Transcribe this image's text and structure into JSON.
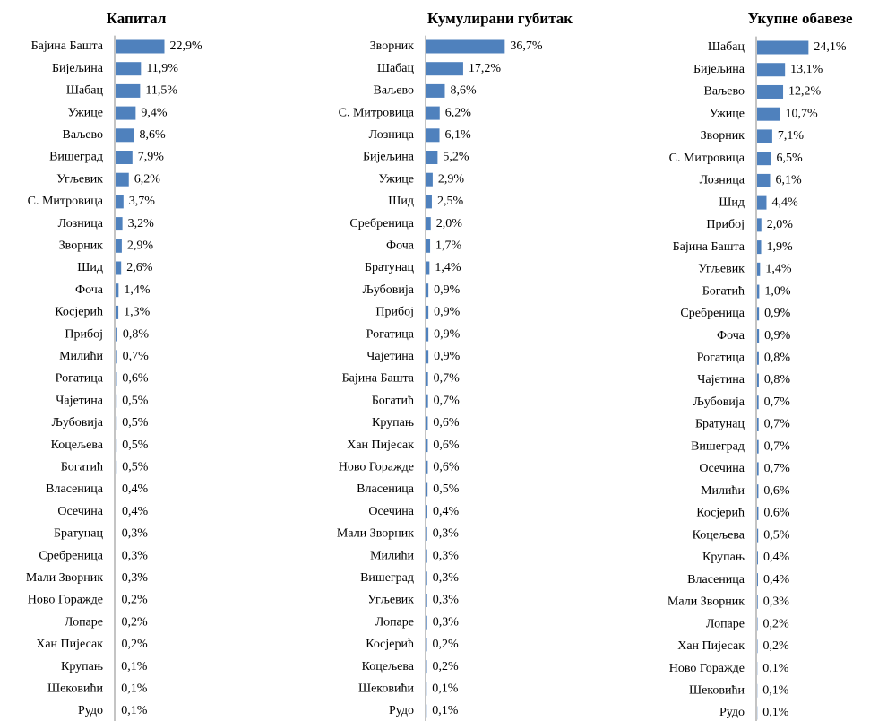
{
  "chart_data": [
    {
      "type": "bar",
      "orientation": "horizontal",
      "title": "Капитал",
      "color": "#4f81bd",
      "categories": [
        "Бајина Башта",
        "Бијељина",
        "Шабац",
        "Ужице",
        "Ваљево",
        "Вишеград",
        "Угљевик",
        "С. Митровица",
        "Лозница",
        "Зворник",
        "Шид",
        "Фоча",
        "Косјерић",
        "Прибој",
        "Милићи",
        "Рогатица",
        "Чајетина",
        "Љубовија",
        "Коцељева",
        "Богатић",
        "Власеница",
        "Осечина",
        "Братунац",
        "Сребреница",
        "Мали Зворник",
        "Ново Горажде",
        "Лопаре",
        "Хан Пијесак",
        "Крупањ",
        "Шековићи",
        "Рудо"
      ],
      "values": [
        22.9,
        11.9,
        11.5,
        9.4,
        8.6,
        7.9,
        6.2,
        3.7,
        3.2,
        2.9,
        2.6,
        1.4,
        1.3,
        0.8,
        0.7,
        0.6,
        0.5,
        0.5,
        0.5,
        0.5,
        0.4,
        0.4,
        0.3,
        0.3,
        0.3,
        0.2,
        0.2,
        0.2,
        0.1,
        0.1,
        0.1
      ],
      "value_labels": [
        "22,9%",
        "11,9%",
        "11,5%",
        "9,4%",
        "8,6%",
        "7,9%",
        "6,2%",
        "3,7%",
        "3,2%",
        "2,9%",
        "2,6%",
        "1,4%",
        "1,3%",
        "0,8%",
        "0,7%",
        "0,6%",
        "0,5%",
        "0,5%",
        "0,5%",
        "0,5%",
        "0,4%",
        "0,4%",
        "0,3%",
        "0,3%",
        "0,3%",
        "0,2%",
        "0,2%",
        "0,2%",
        "0,1%",
        "0,1%",
        "0,1%"
      ]
    },
    {
      "type": "bar",
      "orientation": "horizontal",
      "title": "Кумулирани губитак",
      "color": "#4f81bd",
      "categories": [
        "Зворник",
        "Шабац",
        "Ваљево",
        "С. Митровица",
        "Лозница",
        "Бијељина",
        "Ужице",
        "Шид",
        "Сребреница",
        "Фоча",
        "Братунац",
        "Љубовија",
        "Прибој",
        "Рогатица",
        "Чајетина",
        "Бајина Башта",
        "Богатић",
        "Крупањ",
        "Хан Пијесак",
        "Ново Горажде",
        "Власеница",
        "Осечина",
        "Мали Зворник",
        "Милићи",
        "Вишеград",
        "Угљевик",
        "Лопаре",
        "Косјерић",
        "Коцељева",
        "Шековићи",
        "Рудо"
      ],
      "values": [
        36.7,
        17.2,
        8.6,
        6.2,
        6.1,
        5.2,
        2.9,
        2.5,
        2.0,
        1.7,
        1.4,
        0.9,
        0.9,
        0.9,
        0.9,
        0.7,
        0.7,
        0.6,
        0.6,
        0.6,
        0.5,
        0.4,
        0.3,
        0.3,
        0.3,
        0.3,
        0.3,
        0.2,
        0.2,
        0.1,
        0.1
      ],
      "value_labels": [
        "36,7%",
        "17,2%",
        "8,6%",
        "6,2%",
        "6,1%",
        "5,2%",
        "2,9%",
        "2,5%",
        "2,0%",
        "1,7%",
        "1,4%",
        "0,9%",
        "0,9%",
        "0,9%",
        "0,9%",
        "0,7%",
        "0,7%",
        "0,6%",
        "0,6%",
        "0,6%",
        "0,5%",
        "0,4%",
        "0,3%",
        "0,3%",
        "0,3%",
        "0,3%",
        "0,3%",
        "0,2%",
        "0,2%",
        "0,1%",
        "0,1%"
      ]
    },
    {
      "type": "bar",
      "orientation": "horizontal",
      "title": "Укупне обавезе",
      "color": "#4f81bd",
      "categories": [
        "Шабац",
        "Бијељина",
        "Ваљево",
        "Ужице",
        "Зворник",
        "С. Митровица",
        "Лозница",
        "Шид",
        "Прибој",
        "Бајина Башта",
        "Угљевик",
        "Богатић",
        "Сребреница",
        "Фоча",
        "Рогатица",
        "Чајетина",
        "Љубовија",
        "Братунац",
        "Вишеград",
        "Осечина",
        "Милићи",
        "Косјерић",
        "Коцељева",
        "Крупањ",
        "Власеница",
        "Мали Зворник",
        "Лопаре",
        "Хан Пијесак",
        "Ново Горажде",
        "Шековићи",
        "Рудо"
      ],
      "values": [
        24.1,
        13.1,
        12.2,
        10.7,
        7.1,
        6.5,
        6.1,
        4.4,
        2.0,
        1.9,
        1.4,
        1.0,
        0.9,
        0.9,
        0.8,
        0.8,
        0.7,
        0.7,
        0.7,
        0.7,
        0.6,
        0.6,
        0.5,
        0.4,
        0.4,
        0.3,
        0.2,
        0.2,
        0.1,
        0.1,
        0.1
      ],
      "value_labels": [
        "24,1%",
        "13,1%",
        "12,2%",
        "10,7%",
        "7,1%",
        "6,5%",
        "6,1%",
        "4,4%",
        "2,0%",
        "1,9%",
        "1,4%",
        "1,0%",
        "0,9%",
        "0,9%",
        "0,8%",
        "0,8%",
        "0,7%",
        "0,7%",
        "0,7%",
        "0,7%",
        "0,6%",
        "0,6%",
        "0,5%",
        "0,4%",
        "0,4%",
        "0,3%",
        "0,2%",
        "0,2%",
        "0,1%",
        "0,1%",
        "0,1%"
      ]
    }
  ]
}
